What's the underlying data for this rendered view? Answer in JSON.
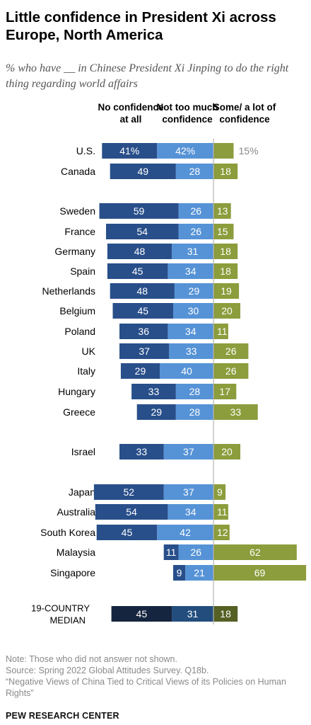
{
  "title": "Little confidence in President Xi across Europe, North America",
  "subtitle": "% who have __ in Chinese President Xi Jinping to do the right thing regarding world affairs",
  "columns": {
    "no_confidence": "No confidence at all",
    "not_too_much": "Not too much confidence",
    "some_lot": "Some/ a lot of confidence"
  },
  "colors": {
    "no_confidence": "#284f8a",
    "not_too_much": "#5693d6",
    "some_lot": "#8b9d3c",
    "median_no_confidence": "#16253f",
    "median_not_too_much": "#234d7d",
    "median_some_lot": "#556024"
  },
  "chart_data": {
    "type": "bar",
    "orientation": "horizontal-diverging",
    "categories": [
      "U.S.",
      "Canada",
      "Sweden",
      "France",
      "Germany",
      "Spain",
      "Netherlands",
      "Belgium",
      "Poland",
      "UK",
      "Italy",
      "Hungary",
      "Greece",
      "Israel",
      "Japan",
      "Australia",
      "South Korea",
      "Malaysia",
      "Singapore",
      "19-COUNTRY MEDIAN"
    ],
    "series": [
      {
        "name": "No confidence at all",
        "values": [
          41,
          49,
          59,
          54,
          48,
          45,
          48,
          45,
          36,
          37,
          29,
          33,
          29,
          33,
          52,
          54,
          45,
          11,
          9,
          45
        ]
      },
      {
        "name": "Not too much confidence",
        "values": [
          42,
          28,
          26,
          26,
          31,
          34,
          29,
          30,
          34,
          33,
          40,
          28,
          28,
          37,
          37,
          34,
          42,
          26,
          21,
          31
        ]
      },
      {
        "name": "Some/ a lot of confidence",
        "values": [
          15,
          18,
          13,
          15,
          18,
          18,
          19,
          20,
          11,
          26,
          26,
          17,
          33,
          20,
          9,
          11,
          12,
          62,
          69,
          18
        ]
      }
    ],
    "labels": {
      "no_confidence": [
        "41%",
        "49",
        "59",
        "54",
        "48",
        "45",
        "48",
        "45",
        "36",
        "37",
        "29",
        "33",
        "29",
        "33",
        "52",
        "54",
        "45",
        "11",
        "9",
        "45"
      ],
      "not_too_much": [
        "42%",
        "28",
        "26",
        "26",
        "31",
        "34",
        "29",
        "30",
        "34",
        "33",
        "40",
        "28",
        "28",
        "37",
        "37",
        "34",
        "42",
        "26",
        "21",
        "31"
      ],
      "some_lot": [
        "15%",
        "18",
        "13",
        "15",
        "18",
        "18",
        "19",
        "20",
        "11",
        "26",
        "26",
        "17",
        "33",
        "20",
        "9",
        "11",
        "12",
        "62",
        "69",
        "18"
      ]
    }
  },
  "footer": {
    "note": "Note: Those who did not answer not shown.",
    "source": "Source: Spring 2022 Global Attitudes Survey. Q18b.",
    "report": "“Negative Views of China Tied to Critical Views of its Policies on Human Rights”"
  },
  "brand": "PEW RESEARCH CENTER"
}
